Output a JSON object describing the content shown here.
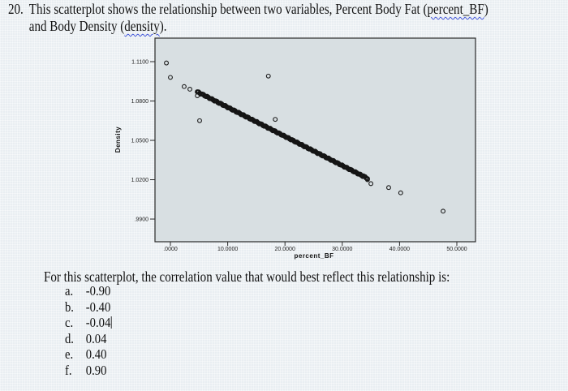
{
  "question": {
    "number": "20.",
    "text_line1_prefix": "This scatterplot shows the relationship between two variables, Percent Body Fat (",
    "var_x": "percent_BF",
    "text_line1_suffix": ")",
    "text_line2_prefix": "and Body Density (",
    "var_y": "density",
    "text_line2_suffix": ")."
  },
  "prompt": "For this scatterplot, the correlation value that would best reflect this relationship is:",
  "options": [
    {
      "letter": "a.",
      "value": "-0.90"
    },
    {
      "letter": "b.",
      "value": "-0.40"
    },
    {
      "letter": "c.",
      "value": "-0.04"
    },
    {
      "letter": "d.",
      "value": "0.04"
    },
    {
      "letter": "e.",
      "value": "0.40"
    },
    {
      "letter": "f.",
      "value": "0.90"
    }
  ],
  "colors": {
    "plot_bg": "#d8dfe2",
    "frame": "#2a2a2a",
    "marker": "#1a1a1a",
    "spellcheck": "#3b4fd8"
  },
  "chart_data": {
    "type": "scatter",
    "title": "",
    "xlabel": "percent_BF",
    "ylabel": "Density",
    "xlim": [
      -1.4,
      53.3
    ],
    "ylim": [
      0.9731,
      1.1204
    ],
    "x_ticks": [
      0,
      10,
      20,
      30,
      40,
      50
    ],
    "x_tick_labels": [
      ".0000",
      "10.0000",
      "20.0000",
      "30.0000",
      "40.0000",
      "50.0000"
    ],
    "y_ticks": [
      1.11,
      1.08,
      1.05,
      1.02,
      0.99
    ],
    "y_tick_labels": [
      "1.1100",
      "1.0800",
      "1.0500",
      "1.0200",
      ".9900"
    ],
    "grid": false,
    "legend": "none",
    "trend_segment": {
      "x_start": 4.7,
      "y_start": 1.087,
      "x_end": 34.4,
      "y_end": 1.021,
      "note": "dense overlapping points forming a near-perfect negative line"
    },
    "points": [
      {
        "x": -0.7,
        "y": 1.109
      },
      {
        "x": 0.0,
        "y": 1.098
      },
      {
        "x": 2.4,
        "y": 1.091
      },
      {
        "x": 3.4,
        "y": 1.089
      },
      {
        "x": 4.7,
        "y": 1.084
      },
      {
        "x": 5.1,
        "y": 1.065
      },
      {
        "x": 17.1,
        "y": 1.099
      },
      {
        "x": 18.3,
        "y": 1.066
      },
      {
        "x": 33.7,
        "y": 1.023
      },
      {
        "x": 34.4,
        "y": 1.02
      },
      {
        "x": 35.0,
        "y": 1.017
      },
      {
        "x": 38.1,
        "y": 1.014
      },
      {
        "x": 40.2,
        "y": 1.01
      },
      {
        "x": 47.6,
        "y": 0.996
      }
    ]
  }
}
